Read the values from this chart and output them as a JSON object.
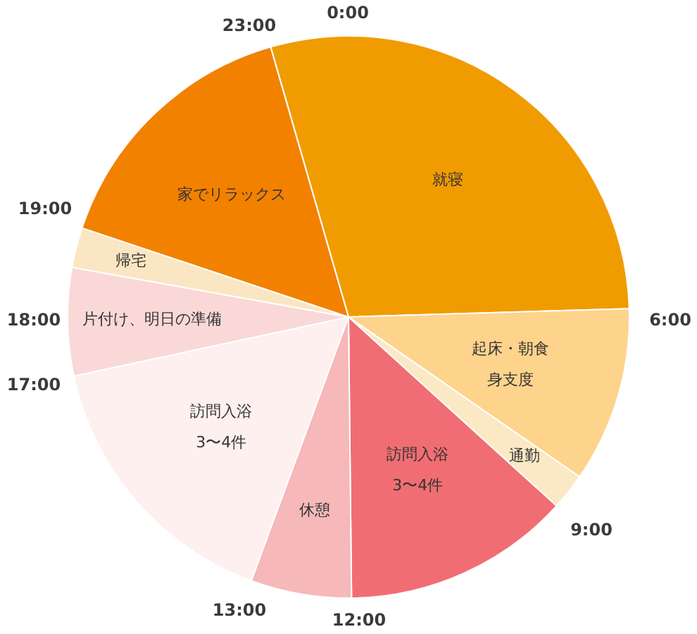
{
  "chart_data": {
    "type": "pie",
    "categories": [
      "就寝",
      "起床・朝食身支度",
      "通勤",
      "訪問入浴3〜4件",
      "休憩",
      "訪問入浴3〜4件",
      "片付け、明日の準備",
      "帰宅",
      "家でリラックス"
    ],
    "values": [
      29.0,
      10.1,
      2.1,
      13.1,
      5.8,
      16.0,
      6.2,
      2.3,
      15.4
    ],
    "colors": [
      "#f09c00",
      "#fed38c",
      "#fbe8c4",
      "#f06e73",
      "#f6b8b9",
      "#fdf0ef",
      "#fad8d8",
      "#fbe6c3",
      "#f28100"
    ],
    "annotations": [
      "0:00",
      "6:00",
      "9:00",
      "12:00",
      "13:00",
      "17:00",
      "18:00",
      "19:00",
      "23:00"
    ],
    "legend": false
  }
}
